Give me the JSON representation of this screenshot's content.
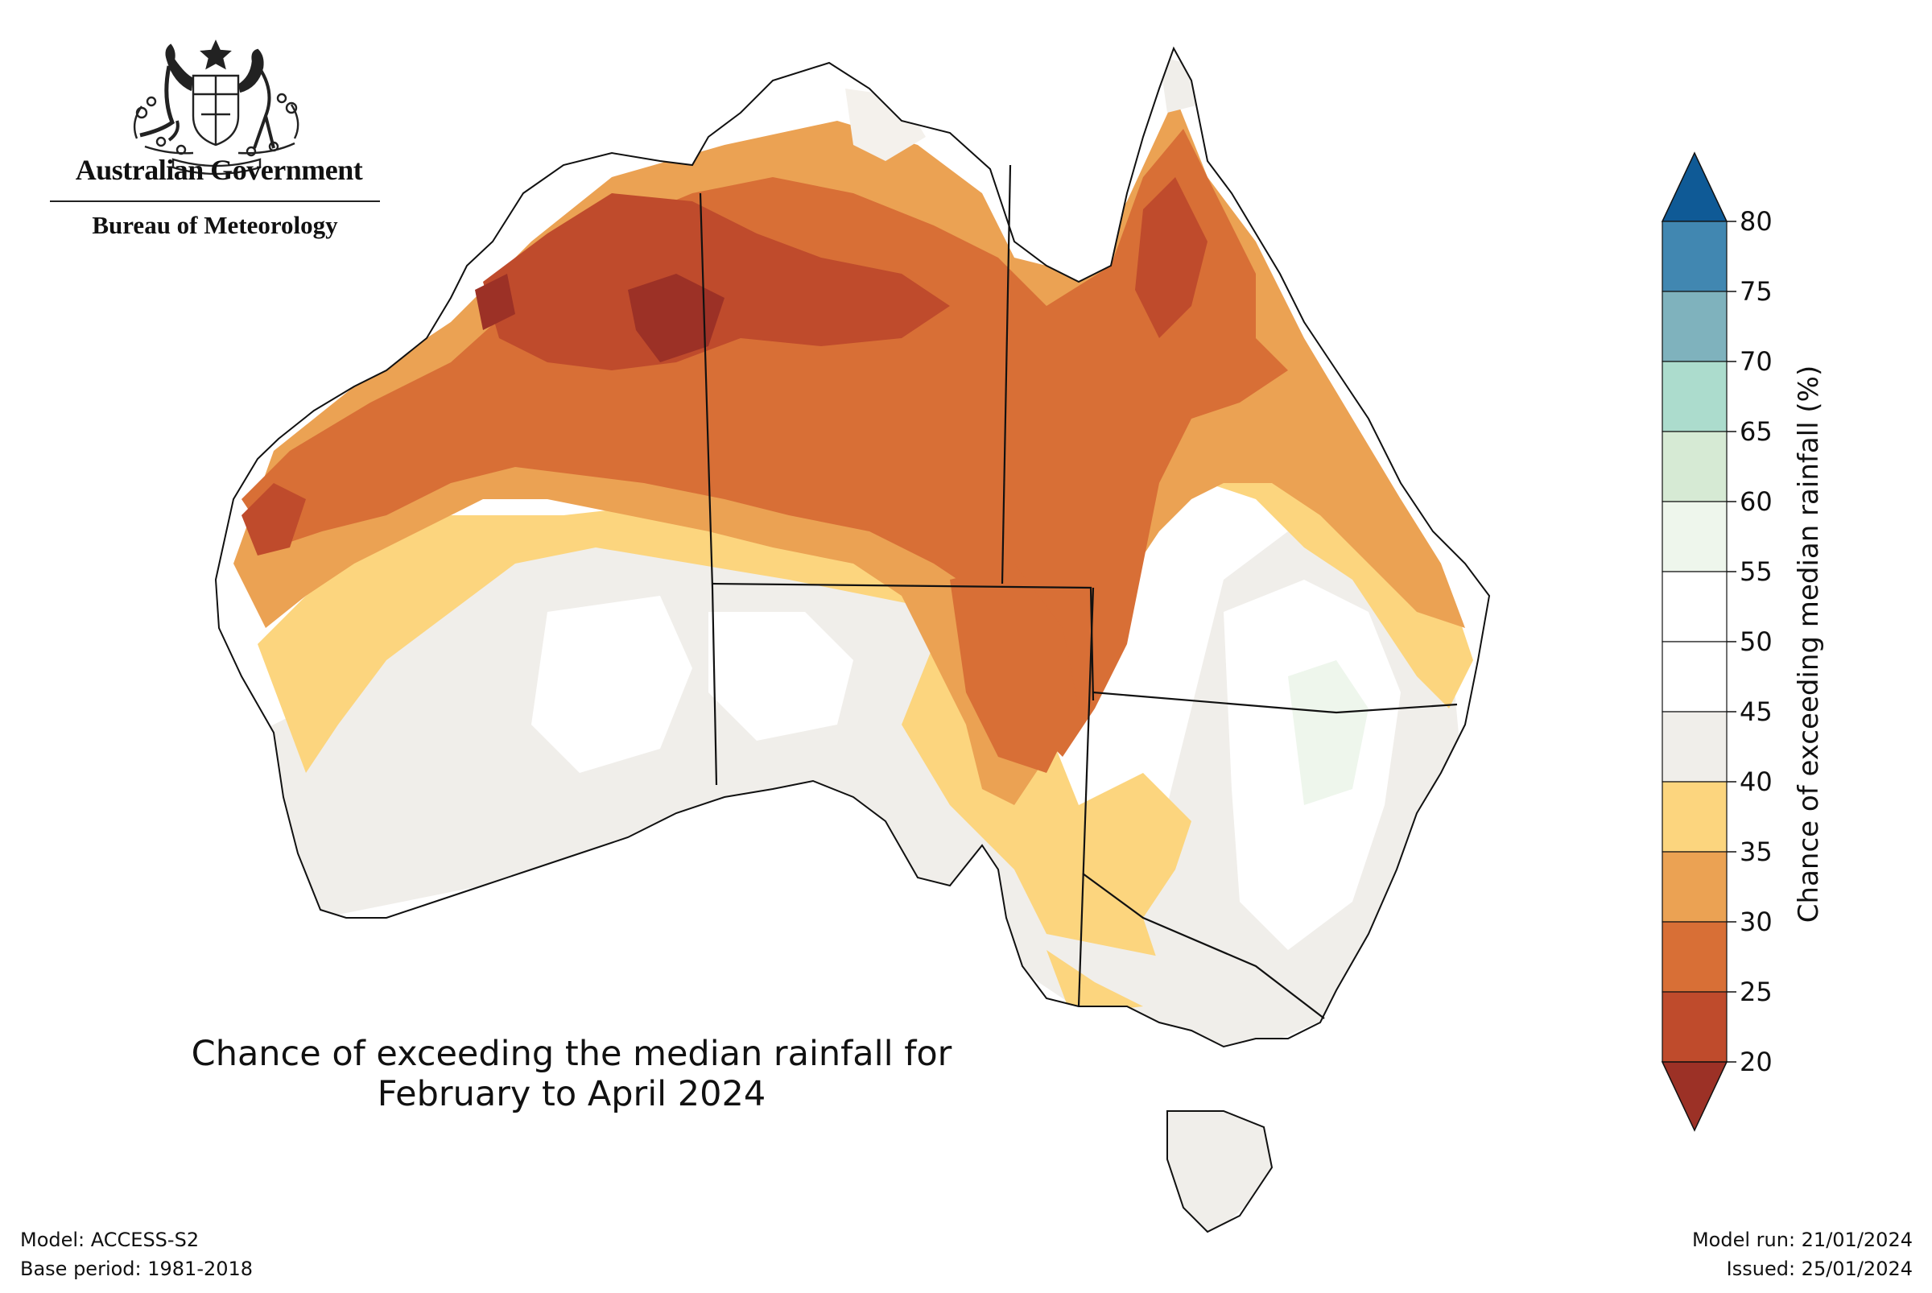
{
  "header": {
    "government": "Australian Government",
    "bureau": "Bureau of Meteorology"
  },
  "map": {
    "title_line1": "Chance of exceeding the median rainfall for",
    "title_line2": "February to April 2024"
  },
  "colorbar": {
    "label": "Chance of exceeding median rainfall (%)",
    "ticks": [
      "80",
      "75",
      "70",
      "65",
      "60",
      "55",
      "50",
      "45",
      "40",
      "35",
      "30",
      "25",
      "20"
    ],
    "colors": {
      "above_80": "#0f5a96",
      "75_80": "#4187b1",
      "70_75": "#7fb2bd",
      "65_70": "#acdccd",
      "60_65": "#d6ead4",
      "55_60": "#eef6ec",
      "50_55": "#ffffff",
      "45_50": "#ffffff",
      "40_45": "#f0eeea",
      "35_40": "#fcd57e",
      "30_35": "#eba253",
      "25_30": "#d86f36",
      "20_25": "#bf4b2c",
      "below_20": "#9c3126"
    }
  },
  "footer": {
    "model": "Model: ACCESS-S2",
    "base_period": "Base period: 1981-2018",
    "model_run": "Model run: 21/01/2024",
    "issued": "Issued: 25/01/2024"
  }
}
